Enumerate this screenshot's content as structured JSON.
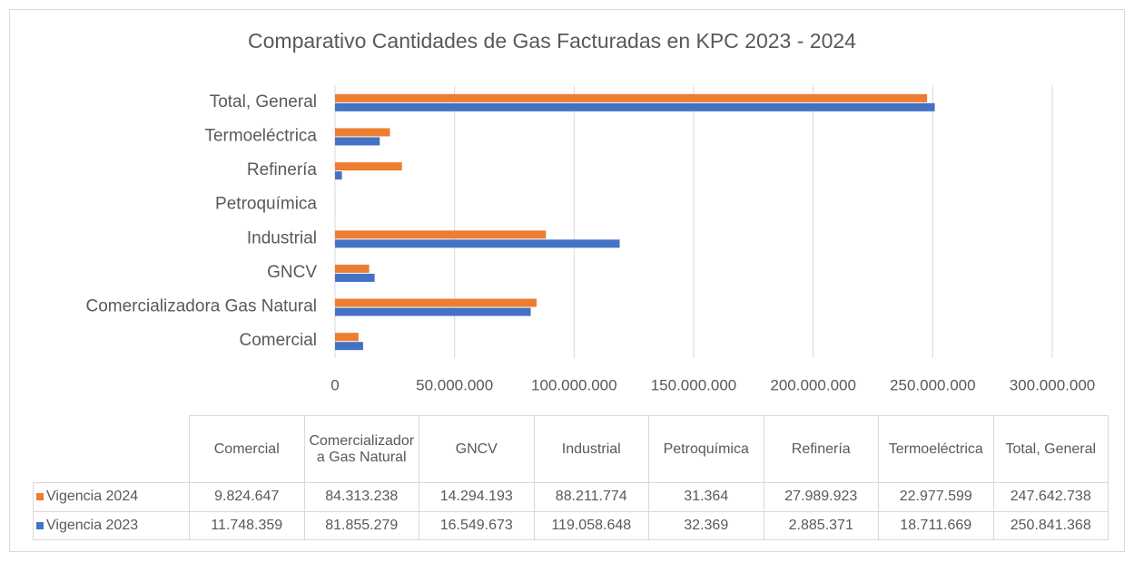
{
  "chart_data": {
    "type": "barh",
    "title": "Comparativo Cantidades de Gas Facturadas en KPC 2023 - 2024",
    "categories": [
      "Comercial",
      "Comercializadora Gas Natural",
      "GNCV",
      "Industrial",
      "Petroquímica",
      "Refinería",
      "Termoeléctrica",
      "Total, General"
    ],
    "series": [
      {
        "name": "Vigencia 2024",
        "color": "#ed7d31",
        "values": [
          9824647,
          84313238,
          14294193,
          88211774,
          31364,
          27989923,
          22977599,
          247642738
        ],
        "value_labels": [
          "9.824.647",
          "84.313.238",
          "14.294.193",
          "88.211.774",
          "31.364",
          "27.989.923",
          "22.977.599",
          "247.642.738"
        ]
      },
      {
        "name": "Vigencia 2023",
        "color": "#4472c4",
        "values": [
          11748359,
          81855279,
          16549673,
          119058648,
          32369,
          2885371,
          18711669,
          250841368
        ],
        "value_labels": [
          "11.748.359",
          "81.855.279",
          "16.549.673",
          "119.058.648",
          "32.369",
          "2.885.371",
          "18.711.669",
          "250.841.368"
        ]
      }
    ],
    "xlim": [
      0,
      300000000
    ],
    "xticks": [
      0,
      {
        "value": 50000000,
        "label": "50.000.000"
      },
      {
        "value": 100000000,
        "label": "100.000.000"
      },
      {
        "value": 150000000,
        "label": "150.000.000"
      },
      {
        "value": 200000000,
        "label": "200.000.000"
      },
      {
        "value": 250000000,
        "label": "250.000.000"
      },
      {
        "value": 300000000,
        "label": "300.000.000"
      }
    ],
    "grid": true
  }
}
